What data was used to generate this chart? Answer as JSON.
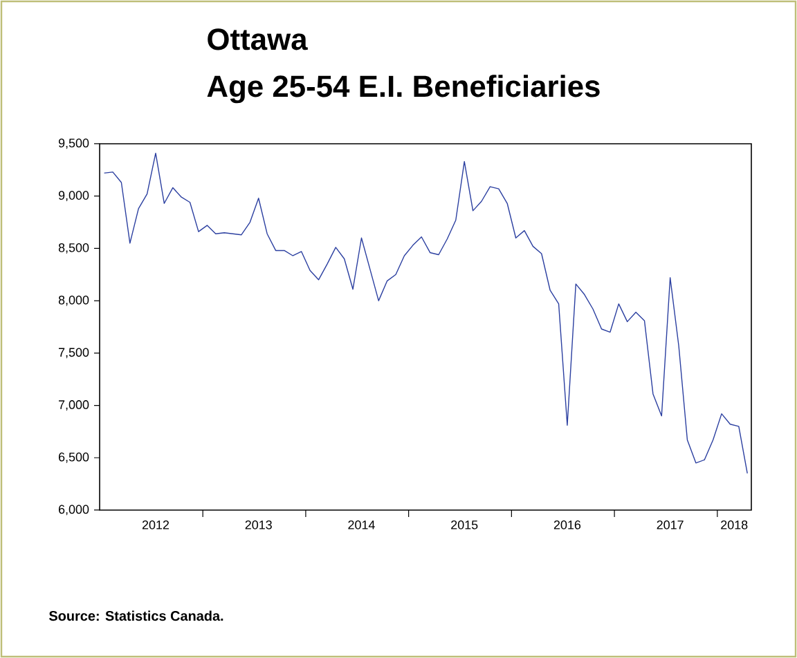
{
  "chart_data": {
    "type": "line",
    "title": "Ottawa",
    "subtitle": "Age 25-54 E.I. Beneficiaries",
    "annotations": [
      "Source: Statistics Canada."
    ],
    "x": [
      "2012-01",
      "2012-02",
      "2012-03",
      "2012-04",
      "2012-05",
      "2012-06",
      "2012-07",
      "2012-08",
      "2012-09",
      "2012-10",
      "2012-11",
      "2012-12",
      "2013-01",
      "2013-02",
      "2013-03",
      "2013-04",
      "2013-05",
      "2013-06",
      "2013-07",
      "2013-08",
      "2013-09",
      "2013-10",
      "2013-11",
      "2013-12",
      "2014-01",
      "2014-02",
      "2014-03",
      "2014-04",
      "2014-05",
      "2014-06",
      "2014-07",
      "2014-08",
      "2014-09",
      "2014-10",
      "2014-11",
      "2014-12",
      "2015-01",
      "2015-02",
      "2015-03",
      "2015-04",
      "2015-05",
      "2015-06",
      "2015-07",
      "2015-08",
      "2015-09",
      "2015-10",
      "2015-11",
      "2015-12",
      "2016-01",
      "2016-02",
      "2016-03",
      "2016-04",
      "2016-05",
      "2016-06",
      "2016-07",
      "2016-08",
      "2016-09",
      "2016-10",
      "2016-11",
      "2016-12",
      "2017-01",
      "2017-02",
      "2017-03",
      "2017-04",
      "2017-05",
      "2017-06",
      "2017-07",
      "2017-08",
      "2017-09",
      "2017-10",
      "2017-11",
      "2017-12",
      "2018-01",
      "2018-02",
      "2018-03",
      "2018-04"
    ],
    "series": [
      {
        "color": "#2b3fa0",
        "values": [
          9220,
          9230,
          9130,
          8550,
          8880,
          9020,
          9410,
          8930,
          9080,
          8990,
          8940,
          8660,
          8720,
          8640,
          8650,
          8640,
          8630,
          8750,
          8980,
          8640,
          8480,
          8480,
          8430,
          8470,
          8290,
          8200,
          8350,
          8510,
          8400,
          8110,
          8600,
          8300,
          8000,
          8190,
          8250,
          8430,
          8530,
          8610,
          8460,
          8440,
          8590,
          8770,
          9330,
          8860,
          8950,
          9090,
          9070,
          8930,
          8600,
          8670,
          8520,
          8450,
          8100,
          7970,
          6810,
          8160,
          8060,
          7920,
          7730,
          7700,
          7970,
          7800,
          7890,
          7810,
          7110,
          6900,
          8220,
          7570,
          6670,
          6450,
          6480,
          6670,
          6920,
          6820,
          6800,
          6350
        ]
      }
    ],
    "xlim": [
      "2011-12-15",
      "2018-04-15"
    ],
    "xticks": [
      {
        "value": "2012-07-01",
        "label": "2012"
      },
      {
        "value": "2012-12-16",
        "label": null
      },
      {
        "value": "2013-07-01",
        "label": "2013"
      },
      {
        "value": "2013-12-16",
        "label": null
      },
      {
        "value": "2014-07-01",
        "label": "2014"
      },
      {
        "value": "2014-12-16",
        "label": null
      },
      {
        "value": "2015-07-01",
        "label": "2015"
      },
      {
        "value": "2015-12-16",
        "label": null
      },
      {
        "value": "2016-07-01",
        "label": "2016"
      },
      {
        "value": "2016-12-16",
        "label": null
      },
      {
        "value": "2017-07-01",
        "label": "2017"
      },
      {
        "value": "2017-12-16",
        "label": null
      },
      {
        "value": "2018-02-15",
        "label": "2018"
      }
    ],
    "ylim": [
      6000,
      9500
    ],
    "yticks": [
      {
        "value": 6000,
        "label": "6,000"
      },
      {
        "value": 6500,
        "label": "6,500"
      },
      {
        "value": 7000,
        "label": "7,000"
      },
      {
        "value": 7500,
        "label": "7,500"
      },
      {
        "value": 8000,
        "label": "8,000"
      },
      {
        "value": 8500,
        "label": "8,500"
      },
      {
        "value": 9000,
        "label": "9,000"
      },
      {
        "value": 9500,
        "label": "9,500"
      }
    ],
    "grid": false,
    "marker": "none",
    "line_style": "solid"
  }
}
